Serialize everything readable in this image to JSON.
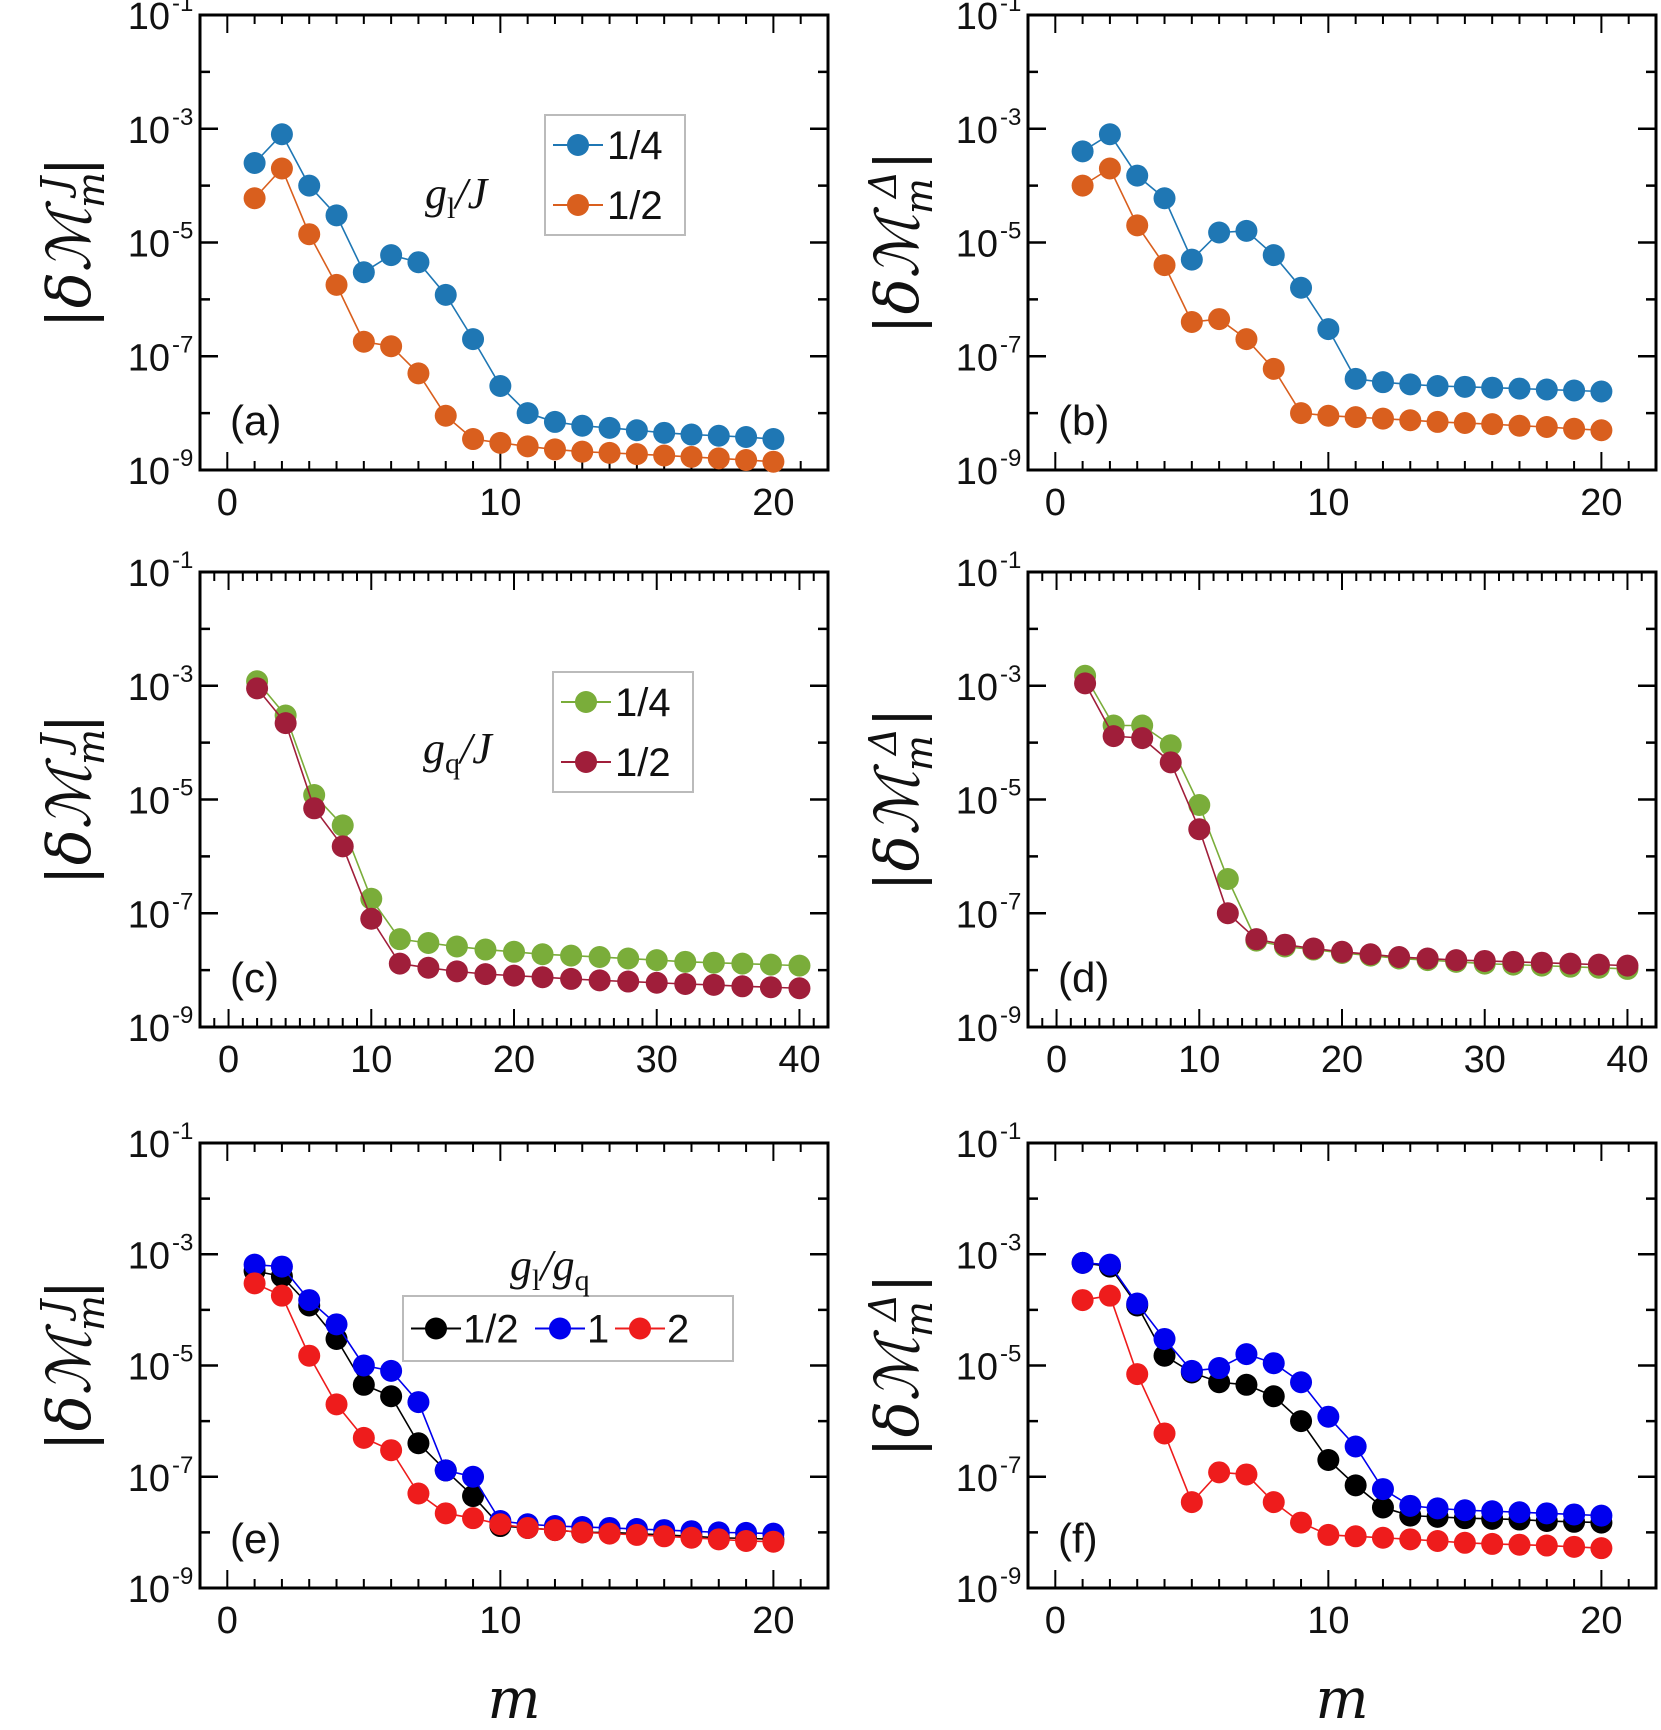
{
  "xlabel": "m",
  "chart_data": [
    {
      "panel": "(a)",
      "type": "line",
      "xlim": [
        -1,
        22
      ],
      "ylim": [
        1e-09,
        0.1
      ],
      "ylabel": "|δM_m^J|",
      "xticks": [
        0,
        10,
        20
      ],
      "legend_title": "g_l/J",
      "legend_loc": "upper-middle",
      "legend_layout": "column",
      "x": [
        1,
        2,
        3,
        4,
        5,
        6,
        7,
        8,
        9,
        10,
        11,
        12,
        13,
        14,
        15,
        16,
        17,
        18,
        19,
        20
      ],
      "series": [
        {
          "name": "1/4",
          "color": "#1f77b4",
          "values": [
            0.00025,
            0.0008,
            0.0001,
            3e-05,
            3e-06,
            6e-06,
            4.5e-06,
            1.2e-06,
            2e-07,
            3e-08,
            1e-08,
            7e-09,
            6e-09,
            5.5e-09,
            5e-09,
            4.5e-09,
            4.2e-09,
            4e-09,
            3.8e-09,
            3.5e-09
          ]
        },
        {
          "name": "1/2",
          "color": "#d95f1e",
          "values": [
            6e-05,
            0.0002,
            1.4e-05,
            1.8e-06,
            1.8e-07,
            1.5e-07,
            5e-08,
            9e-09,
            3.5e-09,
            3e-09,
            2.6e-09,
            2.3e-09,
            2.1e-09,
            2e-09,
            1.9e-09,
            1.8e-09,
            1.7e-09,
            1.6e-09,
            1.5e-09,
            1.4e-09
          ]
        }
      ]
    },
    {
      "panel": "(b)",
      "type": "line",
      "xlim": [
        -1,
        22
      ],
      "ylim": [
        1e-09,
        0.1
      ],
      "ylabel": "|δM_m^Δ|",
      "xticks": [
        0,
        10,
        20
      ],
      "x": [
        1,
        2,
        3,
        4,
        5,
        6,
        7,
        8,
        9,
        10,
        11,
        12,
        13,
        14,
        15,
        16,
        17,
        18,
        19,
        20
      ],
      "series": [
        {
          "name": "1/4",
          "color": "#1f77b4",
          "values": [
            0.0004,
            0.0008,
            0.00015,
            6e-05,
            5e-06,
            1.5e-05,
            1.6e-05,
            6e-06,
            1.6e-06,
            3e-07,
            4e-08,
            3.5e-08,
            3.2e-08,
            3e-08,
            2.9e-08,
            2.8e-08,
            2.7e-08,
            2.6e-08,
            2.5e-08,
            2.4e-08
          ]
        },
        {
          "name": "1/2",
          "color": "#d95f1e",
          "values": [
            0.0001,
            0.0002,
            2e-05,
            4e-06,
            4e-07,
            4.5e-07,
            2e-07,
            6e-08,
            1e-08,
            9e-09,
            8.5e-09,
            8e-09,
            7.5e-09,
            7e-09,
            6.7e-09,
            6.4e-09,
            6e-09,
            5.7e-09,
            5.3e-09,
            5e-09
          ]
        }
      ]
    },
    {
      "panel": "(c)",
      "type": "line",
      "xlim": [
        -2,
        42
      ],
      "ylim": [
        1e-09,
        0.1
      ],
      "ylabel": "|δM_m^J|",
      "xticks": [
        0,
        10,
        20,
        30,
        40
      ],
      "legend_title": "g_q/J",
      "legend_loc": "upper-middle",
      "legend_layout": "column",
      "x": [
        2,
        4,
        6,
        8,
        10,
        12,
        14,
        16,
        18,
        20,
        22,
        24,
        26,
        28,
        30,
        32,
        34,
        36,
        38,
        40
      ],
      "series": [
        {
          "name": "1/4",
          "color": "#7aad3a",
          "values": [
            0.0012,
            0.0003,
            1.2e-05,
            3.5e-06,
            1.8e-07,
            3.5e-08,
            3e-08,
            2.6e-08,
            2.3e-08,
            2.1e-08,
            1.9e-08,
            1.8e-08,
            1.7e-08,
            1.6e-08,
            1.5e-08,
            1.4e-08,
            1.35e-08,
            1.3e-08,
            1.25e-08,
            1.2e-08
          ]
        },
        {
          "name": "1/2",
          "color": "#a01e3a",
          "values": [
            0.0009,
            0.00022,
            7e-06,
            1.5e-06,
            8e-08,
            1.3e-08,
            1.1e-08,
            9.5e-09,
            8.5e-09,
            8e-09,
            7.5e-09,
            7e-09,
            6.6e-09,
            6.3e-09,
            6e-09,
            5.7e-09,
            5.5e-09,
            5.2e-09,
            5e-09,
            4.8e-09
          ]
        }
      ]
    },
    {
      "panel": "(d)",
      "type": "line",
      "xlim": [
        -2,
        42
      ],
      "ylim": [
        1e-09,
        0.1
      ],
      "ylabel": "|δM_m^Δ|",
      "xticks": [
        0,
        10,
        20,
        30,
        40
      ],
      "x": [
        2,
        4,
        6,
        8,
        10,
        12,
        14,
        16,
        18,
        20,
        22,
        24,
        26,
        28,
        30,
        32,
        34,
        36,
        38,
        40
      ],
      "series": [
        {
          "name": "1/4",
          "color": "#7aad3a",
          "values": [
            0.0015,
            0.0002,
            0.0002,
            9e-05,
            8e-06,
            4e-07,
            3.3e-08,
            2.6e-08,
            2.3e-08,
            2e-08,
            1.8e-08,
            1.6e-08,
            1.5e-08,
            1.4e-08,
            1.3e-08,
            1.25e-08,
            1.2e-08,
            1.15e-08,
            1.1e-08,
            1.05e-08
          ]
        },
        {
          "name": "1/2",
          "color": "#a01e3a",
          "values": [
            0.0011,
            0.00013,
            0.00012,
            4.5e-05,
            3e-06,
            1e-07,
            3.5e-08,
            2.8e-08,
            2.4e-08,
            2.1e-08,
            1.9e-08,
            1.7e-08,
            1.6e-08,
            1.5e-08,
            1.45e-08,
            1.4e-08,
            1.35e-08,
            1.3e-08,
            1.25e-08,
            1.2e-08
          ]
        }
      ]
    },
    {
      "panel": "(e)",
      "type": "line",
      "xlim": [
        -1,
        22
      ],
      "ylim": [
        1e-09,
        0.1
      ],
      "ylabel": "|δM_m^J|",
      "xticks": [
        0,
        10,
        20
      ],
      "legend_title": "g_l/g_q",
      "legend_loc": "middle-right",
      "legend_layout": "row",
      "x": [
        1,
        2,
        3,
        4,
        5,
        6,
        7,
        8,
        9,
        10,
        11,
        12,
        13,
        14,
        15,
        16,
        17,
        18,
        19,
        20
      ],
      "series": [
        {
          "name": "1/2",
          "color": "#000000",
          "values": [
            0.0005,
            0.0004,
            0.00012,
            3e-05,
            4.5e-06,
            2.8e-06,
            4e-07,
            1.3e-07,
            4.5e-08,
            1.3e-08,
            1.2e-08,
            1.1e-08,
            1e-08,
            1e-08,
            9.5e-09,
            9e-09,
            8.5e-09,
            8e-09,
            7.8e-09,
            7.5e-09
          ]
        },
        {
          "name": "1",
          "color": "#0000ee",
          "values": [
            0.00065,
            0.0006,
            0.00015,
            5.5e-05,
            1e-05,
            8e-06,
            2.2e-06,
            1.3e-07,
            1e-07,
            1.6e-08,
            1.4e-08,
            1.3e-08,
            1.25e-08,
            1.2e-08,
            1.15e-08,
            1.1e-08,
            1.05e-08,
            1e-08,
            9.8e-09,
            9.5e-09
          ]
        },
        {
          "name": "2",
          "color": "#ee1c1c",
          "values": [
            0.0003,
            0.00018,
            1.5e-05,
            2e-06,
            5e-07,
            3e-07,
            5e-08,
            2.2e-08,
            1.8e-08,
            1.4e-08,
            1.2e-08,
            1.1e-08,
            1e-08,
            9.5e-09,
            9e-09,
            8.5e-09,
            8e-09,
            7.5e-09,
            7e-09,
            6.8e-09
          ]
        }
      ]
    },
    {
      "panel": "(f)",
      "type": "line",
      "xlim": [
        -1,
        22
      ],
      "ylim": [
        1e-09,
        0.1
      ],
      "ylabel": "|δM_m^Δ|",
      "xticks": [
        0,
        10,
        20
      ],
      "x": [
        1,
        2,
        3,
        4,
        5,
        6,
        7,
        8,
        9,
        10,
        11,
        12,
        13,
        14,
        15,
        16,
        17,
        18,
        19,
        20
      ],
      "series": [
        {
          "name": "1/2",
          "color": "#000000",
          "values": [
            0.0007,
            0.0006,
            0.00012,
            1.5e-05,
            7.5e-06,
            5e-06,
            4.5e-06,
            2.8e-06,
            1e-06,
            2e-07,
            7e-08,
            2.8e-08,
            2e-08,
            1.9e-08,
            1.8e-08,
            1.75e-08,
            1.7e-08,
            1.6e-08,
            1.55e-08,
            1.5e-08
          ]
        },
        {
          "name": "1",
          "color": "#0000ee",
          "values": [
            0.0007,
            0.00065,
            0.00013,
            3e-05,
            8e-06,
            9e-06,
            1.6e-05,
            1.1e-05,
            5e-06,
            1.2e-06,
            3.5e-07,
            6e-08,
            3e-08,
            2.7e-08,
            2.5e-08,
            2.4e-08,
            2.3e-08,
            2.2e-08,
            2.1e-08,
            2e-08
          ]
        },
        {
          "name": "2",
          "color": "#ee1c1c",
          "values": [
            0.00015,
            0.00018,
            7e-06,
            6e-07,
            3.5e-08,
            1.2e-07,
            1.1e-07,
            3.5e-08,
            1.5e-08,
            9e-09,
            8.5e-09,
            8e-09,
            7.5e-09,
            7e-09,
            6.5e-09,
            6.2e-09,
            6e-09,
            5.8e-09,
            5.5e-09,
            5.2e-09
          ]
        }
      ]
    }
  ]
}
